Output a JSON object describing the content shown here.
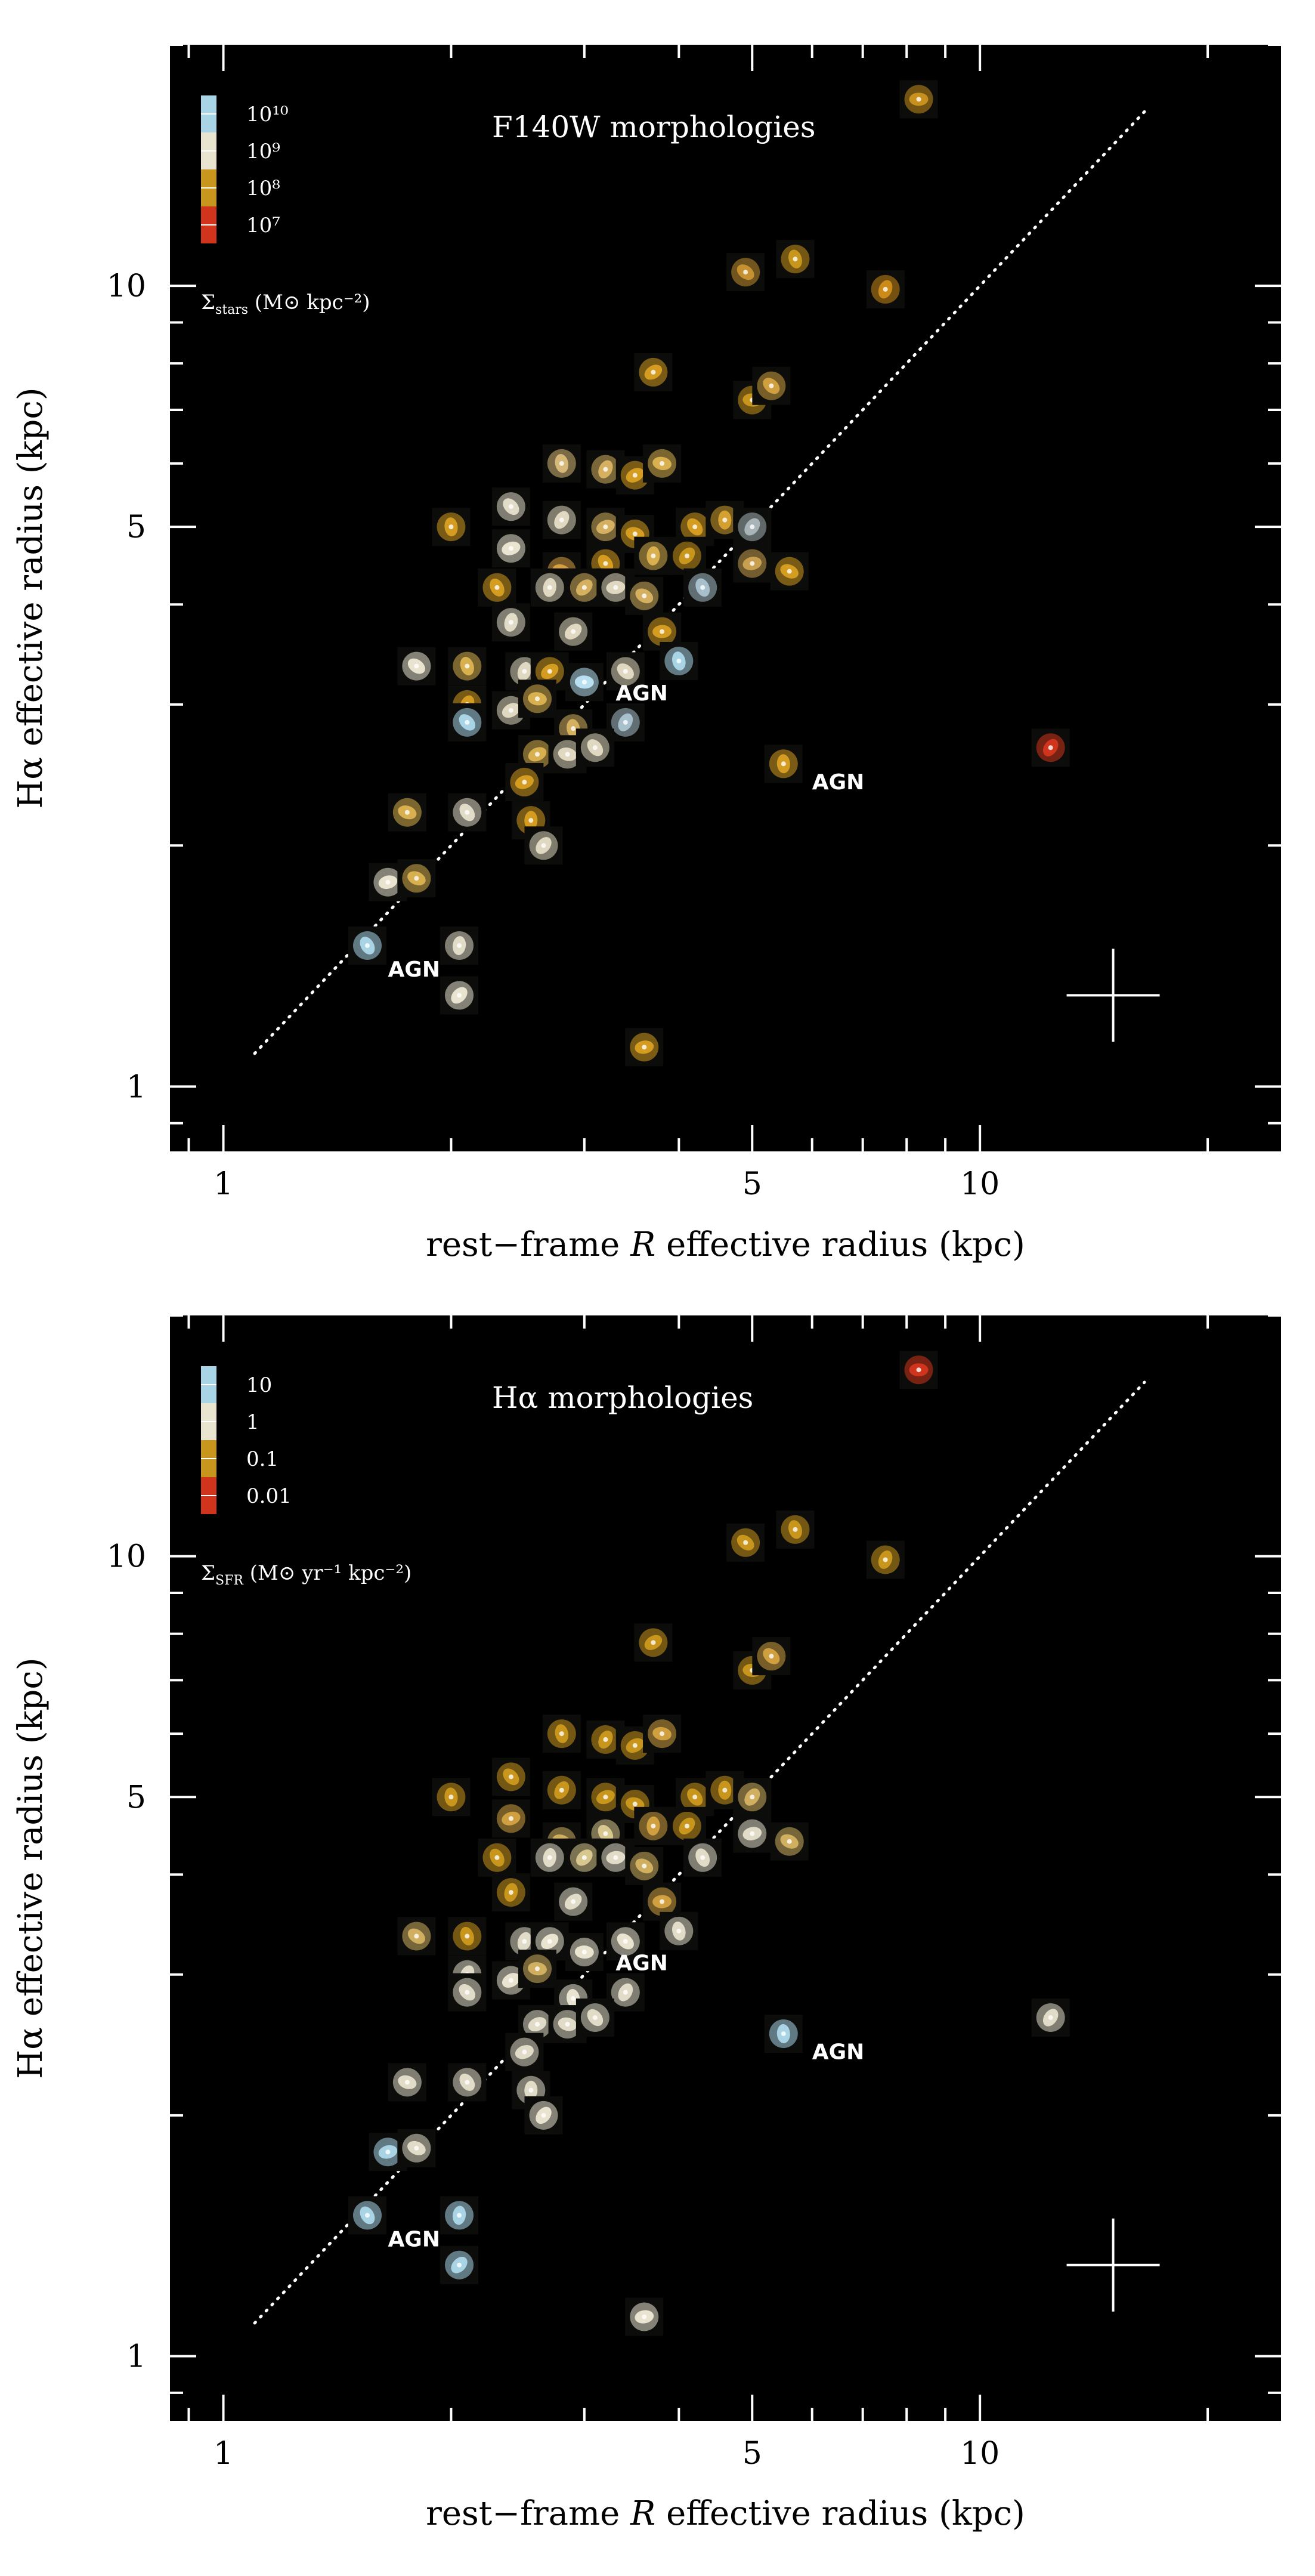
{
  "chart_data": [
    {
      "type": "scatter",
      "title": "F140W morphologies",
      "xlabel_pre": "rest−frame ",
      "xlabel_var": "R",
      "xlabel_post": " effective radius (kpc)",
      "ylabel": "Hα effective radius (kpc)",
      "xscale": "log",
      "yscale": "log",
      "xlim": [
        0.85,
        25
      ],
      "ylim": [
        0.83,
        20
      ],
      "xticks": [
        {
          "v": 1,
          "label": "1"
        },
        {
          "v": 5,
          "label": "5"
        },
        {
          "v": 10,
          "label": "10"
        }
      ],
      "yticks": [
        {
          "v": 1,
          "label": "1"
        },
        {
          "v": 5,
          "label": "5"
        },
        {
          "v": 10,
          "label": "10"
        }
      ],
      "colorbar": {
        "labels": [
          "10¹⁰",
          "10⁹",
          "10⁸",
          "10⁷"
        ],
        "colors": [
          "#a8d4e6",
          "#e8e4d0",
          "#c8961c",
          "#d0341c"
        ],
        "unit_symbol": "Σ",
        "unit_sub": "stars",
        "unit_rest": " (M⊙ kpc⁻²)"
      },
      "one_to_one_line": {
        "x": [
          1.1,
          16.5
        ],
        "y": [
          1.1,
          16.5
        ]
      },
      "error_cross": {
        "x": 15.0,
        "y": 1.3
      },
      "annotations": [
        {
          "text": "AGN",
          "x": 3.3,
          "y": 3.1
        },
        {
          "text": "AGN",
          "x": 6.0,
          "y": 2.4
        },
        {
          "text": "AGN",
          "x": 1.65,
          "y": 1.4
        }
      ],
      "points": [
        {
          "x": 8.3,
          "y": 17.1,
          "c": "#c8901c"
        },
        {
          "x": 4.9,
          "y": 10.4,
          "c": "#c49030"
        },
        {
          "x": 5.7,
          "y": 10.8,
          "c": "#c8961c"
        },
        {
          "x": 7.5,
          "y": 9.9,
          "c": "#cc8a18"
        },
        {
          "x": 3.7,
          "y": 7.8,
          "c": "#d49c20"
        },
        {
          "x": 5.0,
          "y": 7.2,
          "c": "#c8961c"
        },
        {
          "x": 5.3,
          "y": 7.5,
          "c": "#d0a040"
        },
        {
          "x": 2.8,
          "y": 6.0,
          "c": "#d6b878"
        },
        {
          "x": 3.2,
          "y": 5.9,
          "c": "#d4b060"
        },
        {
          "x": 3.5,
          "y": 5.8,
          "c": "#d49c20"
        },
        {
          "x": 3.8,
          "y": 6.0,
          "c": "#d8b050"
        },
        {
          "x": 2.4,
          "y": 5.3,
          "c": "#e0dcc8"
        },
        {
          "x": 2.0,
          "y": 5.0,
          "c": "#d49c20"
        },
        {
          "x": 2.8,
          "y": 5.1,
          "c": "#e0d8c0"
        },
        {
          "x": 3.2,
          "y": 5.0,
          "c": "#d4b060"
        },
        {
          "x": 3.5,
          "y": 4.9,
          "c": "#d49c20"
        },
        {
          "x": 4.2,
          "y": 5.0,
          "c": "#d49c20"
        },
        {
          "x": 4.6,
          "y": 5.1,
          "c": "#d4a030"
        },
        {
          "x": 5.0,
          "y": 5.0,
          "c": "#a8b4b8"
        },
        {
          "x": 2.4,
          "y": 4.7,
          "c": "#e8e4d0"
        },
        {
          "x": 2.8,
          "y": 4.4,
          "c": "#d8a040"
        },
        {
          "x": 3.2,
          "y": 4.5,
          "c": "#d49c20"
        },
        {
          "x": 3.7,
          "y": 4.6,
          "c": "#d8b050"
        },
        {
          "x": 4.1,
          "y": 4.6,
          "c": "#c8961c"
        },
        {
          "x": 5.0,
          "y": 4.5,
          "c": "#c8a050"
        },
        {
          "x": 5.6,
          "y": 4.4,
          "c": "#d49c20"
        },
        {
          "x": 2.3,
          "y": 4.2,
          "c": "#d49c20"
        },
        {
          "x": 2.7,
          "y": 4.2,
          "c": "#e0d8c0"
        },
        {
          "x": 3.0,
          "y": 4.2,
          "c": "#d4b060"
        },
        {
          "x": 3.3,
          "y": 4.2,
          "c": "#e0d8c0"
        },
        {
          "x": 3.6,
          "y": 4.1,
          "c": "#d4b060"
        },
        {
          "x": 4.3,
          "y": 4.2,
          "c": "#a8c0cc"
        },
        {
          "x": 2.4,
          "y": 3.8,
          "c": "#e0dcc8"
        },
        {
          "x": 2.9,
          "y": 3.7,
          "c": "#e0d8c0"
        },
        {
          "x": 3.8,
          "y": 3.7,
          "c": "#d49c20"
        },
        {
          "x": 1.8,
          "y": 3.35,
          "c": "#e8e4d0"
        },
        {
          "x": 2.1,
          "y": 3.35,
          "c": "#d8b050"
        },
        {
          "x": 2.5,
          "y": 3.3,
          "c": "#e0d8c0"
        },
        {
          "x": 2.7,
          "y": 3.3,
          "c": "#d49c20"
        },
        {
          "x": 3.0,
          "y": 3.2,
          "c": "#b8e0f0"
        },
        {
          "x": 3.4,
          "y": 3.3,
          "c": "#e0d8c0"
        },
        {
          "x": 4.0,
          "y": 3.4,
          "c": "#a8d4e6"
        },
        {
          "x": 2.1,
          "y": 3.0,
          "c": "#d49c20"
        },
        {
          "x": 2.4,
          "y": 2.95,
          "c": "#e0d8c0"
        },
        {
          "x": 2.6,
          "y": 3.05,
          "c": "#d8b050"
        },
        {
          "x": 2.1,
          "y": 2.85,
          "c": "#a8d4e6"
        },
        {
          "x": 2.9,
          "y": 2.8,
          "c": "#d4b060"
        },
        {
          "x": 3.4,
          "y": 2.85,
          "c": "#a8c0cc"
        },
        {
          "x": 2.6,
          "y": 2.6,
          "c": "#d8b050"
        },
        {
          "x": 2.85,
          "y": 2.6,
          "c": "#e0d8c0"
        },
        {
          "x": 3.1,
          "y": 2.65,
          "c": "#e0d8c0"
        },
        {
          "x": 5.5,
          "y": 2.53,
          "c": "#d49c20"
        },
        {
          "x": 12.4,
          "y": 2.65,
          "c": "#d0341c"
        },
        {
          "x": 2.5,
          "y": 2.4,
          "c": "#d49c20"
        },
        {
          "x": 1.75,
          "y": 2.2,
          "c": "#d8b050"
        },
        {
          "x": 2.1,
          "y": 2.2,
          "c": "#e0dcc8"
        },
        {
          "x": 2.55,
          "y": 2.15,
          "c": "#d49c20"
        },
        {
          "x": 2.65,
          "y": 2.0,
          "c": "#e0d8c0"
        },
        {
          "x": 1.65,
          "y": 1.8,
          "c": "#e8e4d0"
        },
        {
          "x": 1.8,
          "y": 1.82,
          "c": "#d8b050"
        },
        {
          "x": 1.55,
          "y": 1.5,
          "c": "#a8d4e6"
        },
        {
          "x": 2.05,
          "y": 1.5,
          "c": "#e0dcc8"
        },
        {
          "x": 2.05,
          "y": 1.3,
          "c": "#e8e4d0"
        },
        {
          "x": 3.6,
          "y": 1.12,
          "c": "#d49c20"
        }
      ]
    },
    {
      "type": "scatter",
      "title": "Hα morphologies",
      "xlabel_pre": "rest−frame ",
      "xlabel_var": "R",
      "xlabel_post": " effective radius (kpc)",
      "ylabel": "Hα effective radius (kpc)",
      "xscale": "log",
      "yscale": "log",
      "xlim": [
        0.85,
        25
      ],
      "ylim": [
        0.83,
        20
      ],
      "xticks": [
        {
          "v": 1,
          "label": "1"
        },
        {
          "v": 5,
          "label": "5"
        },
        {
          "v": 10,
          "label": "10"
        }
      ],
      "yticks": [
        {
          "v": 1,
          "label": "1"
        },
        {
          "v": 5,
          "label": "5"
        },
        {
          "v": 10,
          "label": "10"
        }
      ],
      "colorbar": {
        "labels": [
          "10",
          "1",
          "0.1",
          "0.01"
        ],
        "colors": [
          "#a8d4e6",
          "#e8e4d0",
          "#c8961c",
          "#d0341c"
        ],
        "unit_symbol": "Σ",
        "unit_sub": "SFR",
        "unit_rest": " (M⊙ yr⁻¹ kpc⁻²)"
      },
      "one_to_one_line": {
        "x": [
          1.1,
          16.5
        ],
        "y": [
          1.1,
          16.5
        ]
      },
      "error_cross": {
        "x": 15.0,
        "y": 1.3
      },
      "annotations": [
        {
          "text": "AGN",
          "x": 3.3,
          "y": 3.1
        },
        {
          "text": "AGN",
          "x": 6.0,
          "y": 2.4
        },
        {
          "text": "AGN",
          "x": 1.65,
          "y": 1.4
        }
      ],
      "points": [
        {
          "x": 8.3,
          "y": 17.1,
          "c": "#d0341c"
        },
        {
          "x": 4.9,
          "y": 10.4,
          "c": "#c8961c"
        },
        {
          "x": 5.7,
          "y": 10.8,
          "c": "#c8961c"
        },
        {
          "x": 7.5,
          "y": 9.9,
          "c": "#c8961c"
        },
        {
          "x": 3.7,
          "y": 7.8,
          "c": "#c8961c"
        },
        {
          "x": 5.0,
          "y": 7.2,
          "c": "#c8961c"
        },
        {
          "x": 5.3,
          "y": 7.5,
          "c": "#d0a040"
        },
        {
          "x": 2.8,
          "y": 6.0,
          "c": "#c8961c"
        },
        {
          "x": 3.2,
          "y": 5.9,
          "c": "#c8961c"
        },
        {
          "x": 3.5,
          "y": 5.8,
          "c": "#c8961c"
        },
        {
          "x": 3.8,
          "y": 6.0,
          "c": "#d0a040"
        },
        {
          "x": 2.4,
          "y": 5.3,
          "c": "#c8961c"
        },
        {
          "x": 2.0,
          "y": 5.0,
          "c": "#c8961c"
        },
        {
          "x": 2.8,
          "y": 5.1,
          "c": "#c8961c"
        },
        {
          "x": 3.2,
          "y": 5.0,
          "c": "#c8961c"
        },
        {
          "x": 3.5,
          "y": 4.9,
          "c": "#c8961c"
        },
        {
          "x": 4.2,
          "y": 5.0,
          "c": "#c8961c"
        },
        {
          "x": 4.6,
          "y": 5.1,
          "c": "#c8961c"
        },
        {
          "x": 5.0,
          "y": 5.0,
          "c": "#d0b060"
        },
        {
          "x": 2.4,
          "y": 4.7,
          "c": "#d0a040"
        },
        {
          "x": 2.8,
          "y": 4.4,
          "c": "#d0b060"
        },
        {
          "x": 3.2,
          "y": 4.5,
          "c": "#d8c890"
        },
        {
          "x": 3.7,
          "y": 4.6,
          "c": "#d0a040"
        },
        {
          "x": 4.1,
          "y": 4.6,
          "c": "#c8961c"
        },
        {
          "x": 5.0,
          "y": 4.5,
          "c": "#e0dcc8"
        },
        {
          "x": 5.6,
          "y": 4.4,
          "c": "#d0b060"
        },
        {
          "x": 2.3,
          "y": 4.2,
          "c": "#c8961c"
        },
        {
          "x": 2.7,
          "y": 4.2,
          "c": "#e0dcc8"
        },
        {
          "x": 3.0,
          "y": 4.2,
          "c": "#d8c890"
        },
        {
          "x": 3.3,
          "y": 4.2,
          "c": "#e0dcc8"
        },
        {
          "x": 3.6,
          "y": 4.1,
          "c": "#d0b060"
        },
        {
          "x": 4.3,
          "y": 4.2,
          "c": "#e0dcc8"
        },
        {
          "x": 2.4,
          "y": 3.8,
          "c": "#c8961c"
        },
        {
          "x": 2.9,
          "y": 3.7,
          "c": "#e0dcc8"
        },
        {
          "x": 3.8,
          "y": 3.7,
          "c": "#d0a040"
        },
        {
          "x": 1.8,
          "y": 3.35,
          "c": "#d0b060"
        },
        {
          "x": 2.1,
          "y": 3.35,
          "c": "#c8961c"
        },
        {
          "x": 2.5,
          "y": 3.3,
          "c": "#e0dcc8"
        },
        {
          "x": 2.7,
          "y": 3.3,
          "c": "#e8e4d0"
        },
        {
          "x": 3.0,
          "y": 3.2,
          "c": "#e8e4d0"
        },
        {
          "x": 3.4,
          "y": 3.3,
          "c": "#e8e4d0"
        },
        {
          "x": 4.0,
          "y": 3.4,
          "c": "#e0dcc8"
        },
        {
          "x": 2.1,
          "y": 3.0,
          "c": "#e0dcc8"
        },
        {
          "x": 2.4,
          "y": 2.95,
          "c": "#e8e4d0"
        },
        {
          "x": 2.6,
          "y": 3.05,
          "c": "#d0b060"
        },
        {
          "x": 2.1,
          "y": 2.85,
          "c": "#e0dcc8"
        },
        {
          "x": 2.9,
          "y": 2.8,
          "c": "#e8e4d0"
        },
        {
          "x": 3.4,
          "y": 2.85,
          "c": "#e0dcc8"
        },
        {
          "x": 2.6,
          "y": 2.6,
          "c": "#e0dcc8"
        },
        {
          "x": 2.85,
          "y": 2.6,
          "c": "#e0dcc8"
        },
        {
          "x": 3.1,
          "y": 2.65,
          "c": "#e0dcc8"
        },
        {
          "x": 5.5,
          "y": 2.53,
          "c": "#a8d4e6"
        },
        {
          "x": 12.4,
          "y": 2.65,
          "c": "#e0dcc8"
        },
        {
          "x": 2.5,
          "y": 2.4,
          "c": "#e0dcc8"
        },
        {
          "x": 1.75,
          "y": 2.2,
          "c": "#e0dcc8"
        },
        {
          "x": 2.1,
          "y": 2.2,
          "c": "#e0dcc8"
        },
        {
          "x": 2.55,
          "y": 2.15,
          "c": "#e0dcc8"
        },
        {
          "x": 2.65,
          "y": 2.0,
          "c": "#e8e4d0"
        },
        {
          "x": 1.65,
          "y": 1.8,
          "c": "#a8d4e6"
        },
        {
          "x": 1.8,
          "y": 1.82,
          "c": "#e0dcc8"
        },
        {
          "x": 1.55,
          "y": 1.5,
          "c": "#a8d4e6"
        },
        {
          "x": 2.05,
          "y": 1.5,
          "c": "#a8d4e6"
        },
        {
          "x": 2.05,
          "y": 1.3,
          "c": "#a8d4e6"
        },
        {
          "x": 3.6,
          "y": 1.12,
          "c": "#e8e4d0"
        }
      ]
    }
  ]
}
